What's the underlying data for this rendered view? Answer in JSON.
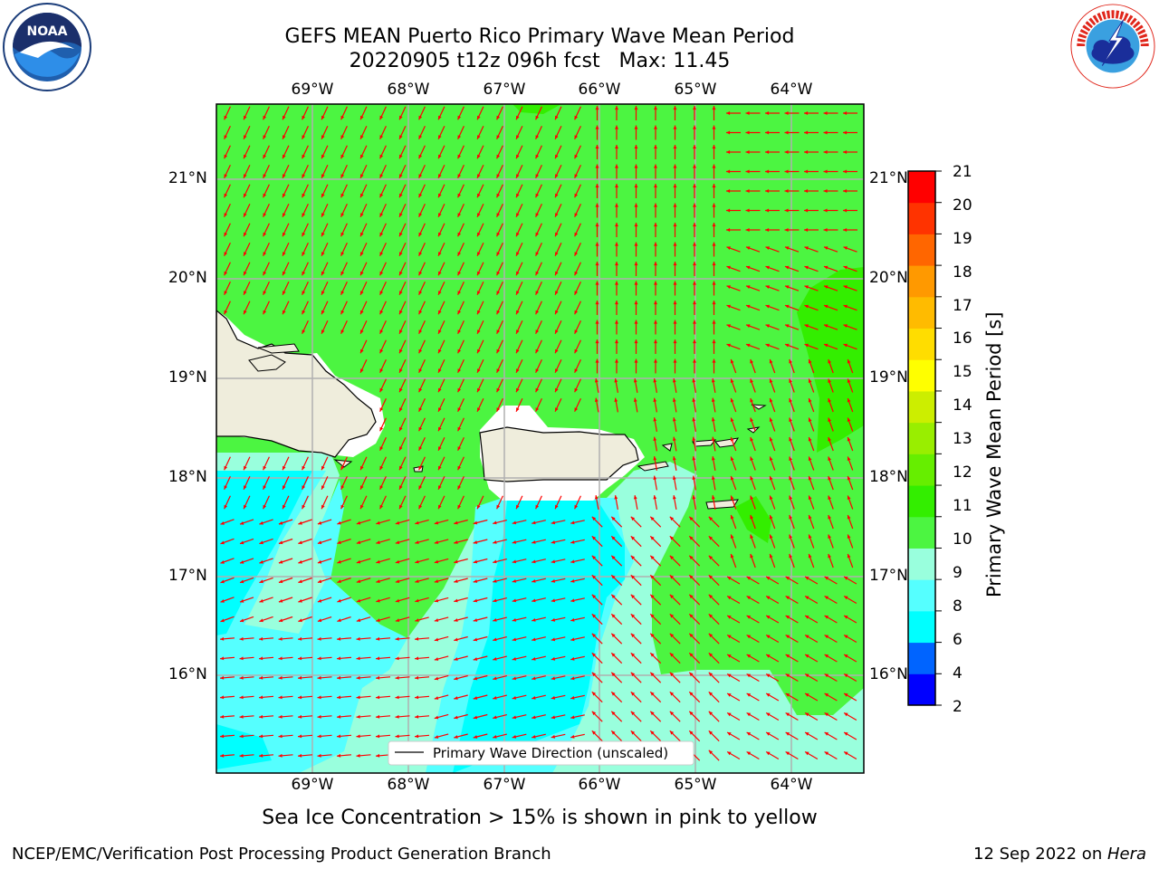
{
  "header": {
    "title_line1": "GEFS MEAN Puerto Rico Primary Wave Mean Period",
    "title_line2": "20220905 t12z 096h fcst   Max: 11.45"
  },
  "logos": {
    "left": {
      "name": "noaa-logo",
      "text": "NOAA",
      "ring_text": "NATIONAL OCEANIC AND ATMOSPHERIC ADMINISTRATION · U.S. DEPARTMENT OF COMMERCE"
    },
    "right": {
      "name": "nws-logo",
      "ring_text": "NATIONAL WEATHER SERVICE"
    }
  },
  "map": {
    "lon_range": [
      -70.0,
      -63.25
    ],
    "lat_range": [
      15.0,
      21.75
    ],
    "lon_ticks": [
      "69°W",
      "68°W",
      "67°W",
      "66°W",
      "65°W",
      "64°W"
    ],
    "lat_ticks": [
      "21°N",
      "20°N",
      "19°N",
      "18°N",
      "17°N",
      "16°N"
    ],
    "grid": true,
    "legend": {
      "label": "Primary Wave Direction (unscaled)",
      "placement": "bottom-center"
    },
    "colors": {
      "land": "#efeddc",
      "arrow": "#ff0000",
      "grid": "#b0b0b0"
    }
  },
  "colorbar": {
    "label": "Primary Wave Mean Period [s]",
    "ticks": [
      "21",
      "20",
      "19",
      "18",
      "17",
      "16",
      "15",
      "14",
      "13",
      "12",
      "11",
      "10",
      "9",
      "8",
      "6",
      "4",
      "2"
    ],
    "bands": [
      "#0000ff",
      "#0064ff",
      "#00ffff",
      "#55ffff",
      "#99ffdd",
      "#4cf541",
      "#33ee00",
      "#66ee00",
      "#99ee00",
      "#ccee00",
      "#ffff00",
      "#ffdd00",
      "#ffbb00",
      "#ff9900",
      "#ff6600",
      "#ff3300",
      "#ff0000"
    ]
  },
  "caption": "Sea Ice Concentration > 15% is shown in pink to yellow",
  "footer": {
    "left": "NCEP/EMC/Verification Post Processing Product Generation Branch",
    "right_prefix": "12 Sep 2022 on ",
    "right_host": "Hera"
  }
}
